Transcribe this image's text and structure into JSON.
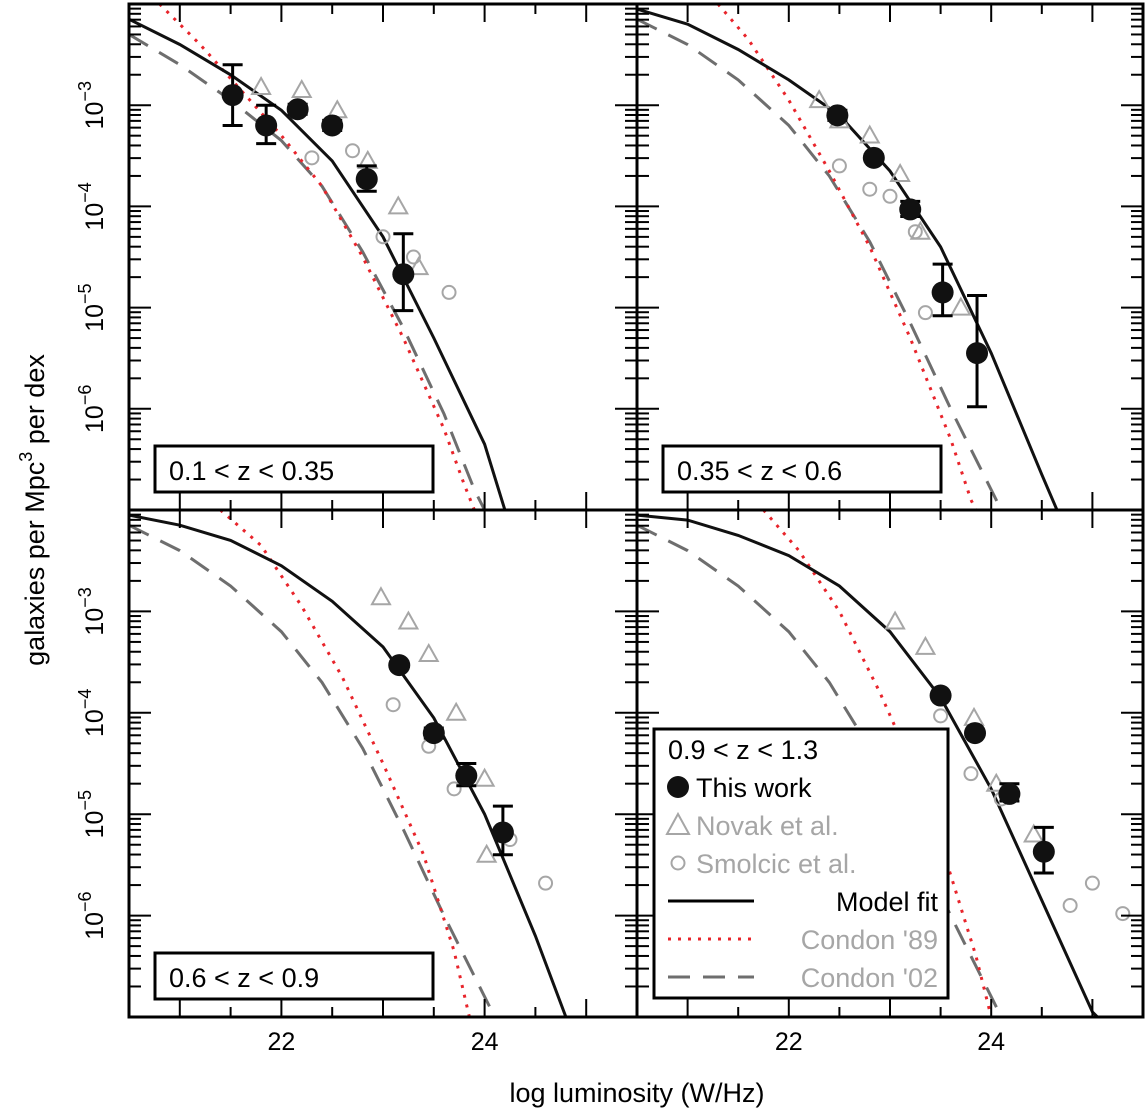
{
  "chart_data": {
    "type": "scatter",
    "xlabel": "log luminosity (W/Hz)",
    "ylabel": "galaxies per Mpc",
    "ylabel_sup": "3",
    "ylabel_tail": " per dex",
    "xlim": [
      20.5,
      25.5
    ],
    "ylim_log10": [
      -7.0,
      -2.0
    ],
    "x_ticks": [
      22,
      24
    ],
    "y_ticks": [
      {
        "base": "10",
        "exp": "−3",
        "value": -3
      },
      {
        "base": "10",
        "exp": "−4",
        "value": -4
      },
      {
        "base": "10",
        "exp": "−5",
        "value": -5
      },
      {
        "base": "10",
        "exp": "−6",
        "value": -6
      }
    ],
    "legend": {
      "panel": 3,
      "entries": [
        {
          "label": "This work",
          "color": "#000000",
          "marker": "filled-circle"
        },
        {
          "label": "Novak et al.",
          "color": "#a6a6a6",
          "marker": "open-triangle"
        },
        {
          "label": "Smolcic et al.",
          "color": "#a6a6a6",
          "marker": "open-circle"
        },
        {
          "label": "Model fit",
          "color": "#000000",
          "line": "solid"
        },
        {
          "label": "Condon '89",
          "color": "#a6a6a6",
          "line": "dotted",
          "line_color": "#e8242b"
        },
        {
          "label": "Condon '02",
          "color": "#a6a6a6",
          "line": "dashed",
          "line_color": "#6e6e6e"
        }
      ]
    },
    "panels": [
      {
        "label": "0.1 < z < 0.35",
        "model": [
          [
            20.5,
            -2.15
          ],
          [
            21.0,
            -2.4
          ],
          [
            21.5,
            -2.7
          ],
          [
            22.0,
            -3.05
          ],
          [
            22.5,
            -3.55
          ],
          [
            23.0,
            -4.3
          ],
          [
            23.5,
            -5.3
          ],
          [
            24.0,
            -6.35
          ],
          [
            24.2,
            -7.0
          ]
        ],
        "condon89": [
          [
            20.8,
            -2.0
          ],
          [
            21.2,
            -2.4
          ],
          [
            21.6,
            -2.85
          ],
          [
            22.0,
            -3.3
          ],
          [
            22.4,
            -3.8
          ],
          [
            22.8,
            -4.5
          ],
          [
            23.2,
            -5.3
          ],
          [
            23.6,
            -6.2
          ],
          [
            23.8,
            -6.75
          ],
          [
            23.9,
            -7.0
          ]
        ],
        "condon02": [
          [
            20.5,
            -2.3
          ],
          [
            21.0,
            -2.6
          ],
          [
            21.5,
            -2.95
          ],
          [
            22.0,
            -3.35
          ],
          [
            22.4,
            -3.8
          ],
          [
            22.8,
            -4.45
          ],
          [
            23.2,
            -5.2
          ],
          [
            23.6,
            -6.05
          ],
          [
            23.9,
            -6.8
          ],
          [
            24.0,
            -7.0
          ]
        ],
        "this_work": [
          {
            "x": 21.52,
            "y": -2.9,
            "ylo": -3.2,
            "yhi": -2.6
          },
          {
            "x": 21.85,
            "y": -3.2,
            "ylo": -3.38,
            "yhi": -3.0
          },
          {
            "x": 22.16,
            "y": -3.04,
            "ylo": -3.09,
            "yhi": -2.99
          },
          {
            "x": 22.5,
            "y": -3.2,
            "ylo": -3.25,
            "yhi": -3.15
          },
          {
            "x": 22.84,
            "y": -3.73,
            "ylo": -3.85,
            "yhi": -3.6
          },
          {
            "x": 23.2,
            "y": -4.67,
            "ylo": -5.03,
            "yhi": -4.27
          }
        ],
        "novak": [
          [
            21.8,
            -2.82
          ],
          [
            22.2,
            -2.85
          ],
          [
            22.55,
            -3.05
          ],
          [
            22.85,
            -3.55
          ],
          [
            23.15,
            -4.0
          ],
          [
            23.35,
            -4.6
          ]
        ],
        "smolcic": [
          [
            21.85,
            -3.18
          ],
          [
            22.3,
            -3.52
          ],
          [
            22.7,
            -3.45
          ],
          [
            23.0,
            -4.3
          ],
          [
            23.3,
            -4.5
          ],
          [
            23.65,
            -4.85
          ]
        ]
      },
      {
        "label": "0.35 < z < 0.6",
        "model": [
          [
            20.5,
            -2.05
          ],
          [
            21.0,
            -2.2
          ],
          [
            21.5,
            -2.45
          ],
          [
            22.0,
            -2.75
          ],
          [
            22.5,
            -3.1
          ],
          [
            23.0,
            -3.65
          ],
          [
            23.5,
            -4.4
          ],
          [
            24.0,
            -5.45
          ],
          [
            24.5,
            -6.65
          ],
          [
            24.65,
            -7.0
          ]
        ],
        "condon89": [
          [
            21.3,
            -2.0
          ],
          [
            21.6,
            -2.35
          ],
          [
            22.0,
            -2.95
          ],
          [
            22.4,
            -3.65
          ],
          [
            22.8,
            -4.4
          ],
          [
            23.2,
            -5.3
          ],
          [
            23.6,
            -6.3
          ],
          [
            23.8,
            -6.9
          ],
          [
            23.85,
            -7.0
          ]
        ],
        "condon02": [
          [
            20.5,
            -2.15
          ],
          [
            21.0,
            -2.4
          ],
          [
            21.5,
            -2.75
          ],
          [
            22.0,
            -3.2
          ],
          [
            22.4,
            -3.7
          ],
          [
            22.8,
            -4.35
          ],
          [
            23.2,
            -5.15
          ],
          [
            23.6,
            -6.0
          ],
          [
            24.0,
            -6.8
          ],
          [
            24.1,
            -7.0
          ]
        ],
        "this_work": [
          {
            "x": 22.48,
            "y": -3.1,
            "ylo": -3.15,
            "yhi": -3.05
          },
          {
            "x": 22.84,
            "y": -3.52,
            "ylo": -3.55,
            "yhi": -3.49
          },
          {
            "x": 23.2,
            "y": -4.03,
            "ylo": -4.1,
            "yhi": -3.95
          },
          {
            "x": 23.52,
            "y": -4.85,
            "ylo": -5.08,
            "yhi": -4.57
          },
          {
            "x": 23.86,
            "y": -5.45,
            "ylo": -5.98,
            "yhi": -4.88
          }
        ],
        "novak": [
          [
            22.3,
            -2.95
          ],
          [
            22.5,
            -3.15
          ],
          [
            22.8,
            -3.3
          ],
          [
            23.1,
            -3.68
          ],
          [
            23.3,
            -4.25
          ],
          [
            23.7,
            -5.0
          ]
        ],
        "smolcic": [
          [
            22.5,
            -3.6
          ],
          [
            22.8,
            -3.83
          ],
          [
            23.0,
            -3.9
          ],
          [
            23.25,
            -4.25
          ],
          [
            23.35,
            -5.05
          ]
        ]
      },
      {
        "label": "0.6 < z < 0.9",
        "model": [
          [
            20.5,
            -2.05
          ],
          [
            21.0,
            -2.15
          ],
          [
            21.5,
            -2.3
          ],
          [
            22.0,
            -2.55
          ],
          [
            22.5,
            -2.9
          ],
          [
            23.0,
            -3.35
          ],
          [
            23.5,
            -4.05
          ],
          [
            24.0,
            -5.0
          ],
          [
            24.5,
            -6.2
          ],
          [
            24.8,
            -7.0
          ]
        ],
        "condon89": [
          [
            21.4,
            -2.0
          ],
          [
            21.8,
            -2.35
          ],
          [
            22.2,
            -2.95
          ],
          [
            22.6,
            -3.65
          ],
          [
            23.0,
            -4.5
          ],
          [
            23.4,
            -5.4
          ],
          [
            23.7,
            -6.35
          ],
          [
            23.85,
            -7.0
          ]
        ],
        "condon02": [
          [
            20.5,
            -2.15
          ],
          [
            21.0,
            -2.4
          ],
          [
            21.5,
            -2.75
          ],
          [
            22.0,
            -3.2
          ],
          [
            22.4,
            -3.7
          ],
          [
            22.8,
            -4.35
          ],
          [
            23.2,
            -5.15
          ],
          [
            23.6,
            -6.0
          ],
          [
            24.0,
            -6.8
          ],
          [
            24.1,
            -7.0
          ]
        ],
        "this_work": [
          {
            "x": 23.16,
            "y": -3.53,
            "ylo": -3.56,
            "yhi": -3.5
          },
          {
            "x": 23.5,
            "y": -4.2,
            "ylo": -4.25,
            "yhi": -4.15
          },
          {
            "x": 23.82,
            "y": -4.62,
            "ylo": -4.72,
            "yhi": -4.5
          },
          {
            "x": 24.18,
            "y": -5.18,
            "ylo": -5.4,
            "yhi": -4.92
          }
        ],
        "novak": [
          [
            22.98,
            -2.86
          ],
          [
            23.25,
            -3.1
          ],
          [
            23.45,
            -3.42
          ],
          [
            23.72,
            -4.0
          ],
          [
            24.0,
            -4.65
          ],
          [
            24.02,
            -5.4
          ]
        ],
        "smolcic": [
          [
            23.1,
            -3.92
          ],
          [
            23.45,
            -4.33
          ],
          [
            23.7,
            -4.75
          ],
          [
            24.25,
            -5.25
          ],
          [
            24.6,
            -5.68
          ]
        ]
      },
      {
        "label": "0.9 < z < 1.3",
        "model": [
          [
            20.5,
            -2.05
          ],
          [
            21.0,
            -2.1
          ],
          [
            21.5,
            -2.25
          ],
          [
            22.0,
            -2.45
          ],
          [
            22.5,
            -2.75
          ],
          [
            23.0,
            -3.2
          ],
          [
            23.5,
            -3.85
          ],
          [
            24.0,
            -4.75
          ],
          [
            24.5,
            -5.85
          ],
          [
            25.0,
            -6.95
          ],
          [
            25.05,
            -7.0
          ]
        ],
        "condon89": [
          [
            21.75,
            -2.0
          ],
          [
            22.1,
            -2.4
          ],
          [
            22.5,
            -3.0
          ],
          [
            22.9,
            -3.8
          ],
          [
            23.3,
            -4.7
          ],
          [
            23.6,
            -5.6
          ],
          [
            23.85,
            -6.4
          ],
          [
            24.0,
            -7.0
          ]
        ],
        "condon02": [
          [
            20.5,
            -2.15
          ],
          [
            21.0,
            -2.4
          ],
          [
            21.5,
            -2.75
          ],
          [
            22.0,
            -3.2
          ],
          [
            22.4,
            -3.7
          ],
          [
            22.8,
            -4.35
          ],
          [
            23.2,
            -5.15
          ],
          [
            23.6,
            -6.0
          ],
          [
            24.0,
            -6.8
          ],
          [
            24.1,
            -7.0
          ]
        ],
        "this_work": [
          {
            "x": 23.5,
            "y": -3.83,
            "ylo": -3.86,
            "yhi": -3.8
          },
          {
            "x": 23.84,
            "y": -4.2,
            "ylo": -4.23,
            "yhi": -4.17
          },
          {
            "x": 24.18,
            "y": -4.8,
            "ylo": -4.87,
            "yhi": -4.7
          },
          {
            "x": 24.52,
            "y": -5.37,
            "ylo": -5.58,
            "yhi": -5.13
          }
        ],
        "novak": [
          [
            23.05,
            -3.1
          ],
          [
            23.35,
            -3.35
          ],
          [
            23.83,
            -4.05
          ],
          [
            24.05,
            -4.7
          ],
          [
            24.42,
            -5.2
          ]
        ],
        "smolcic": [
          [
            23.5,
            -4.03
          ],
          [
            23.8,
            -4.6
          ],
          [
            24.1,
            -4.85
          ],
          [
            24.78,
            -5.9
          ],
          [
            25.0,
            -5.68
          ],
          [
            25.3,
            -5.98
          ]
        ]
      }
    ]
  }
}
